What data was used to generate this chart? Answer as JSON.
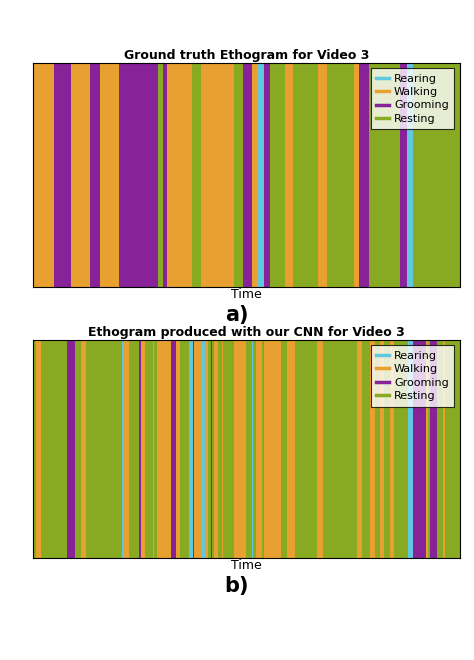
{
  "title_a": "Ground truth Ethogram for Video 3",
  "title_b": "Ethogram produced with our CNN for Video 3",
  "xlabel": "Time",
  "label_a": "a)",
  "label_b": "b)",
  "colors": {
    "Rearing": "#61c8e0",
    "Walking": "#e8a030",
    "Grooming": "#882299",
    "Resting": "#88aa22"
  },
  "legend_labels": [
    "Rearing",
    "Walking",
    "Grooming",
    "Resting"
  ],
  "background": "#ffffff",
  "border_color": "#44aacc",
  "n_frames": 500,
  "seed_a": 7,
  "seed_b": 13
}
